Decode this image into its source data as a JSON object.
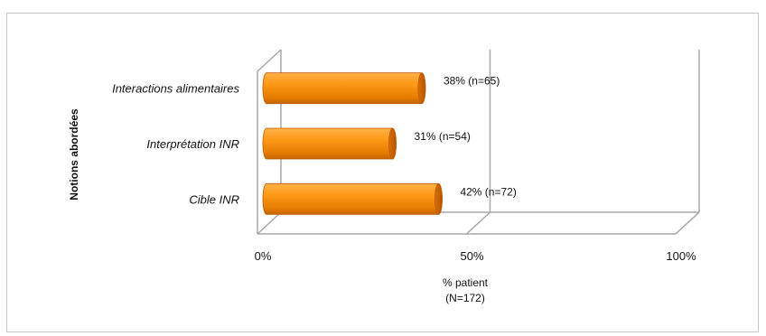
{
  "chart_data": {
    "type": "bar",
    "orientation": "horizontal",
    "style": "3d-cylinder",
    "categories": [
      "Interactions alimentaires",
      "Interprétation INR",
      "Cible INR"
    ],
    "values": [
      38,
      31,
      42
    ],
    "data_labels": [
      "38% (n=65)",
      "31% (n=54)",
      "42% (n=72)"
    ],
    "xlim": [
      0,
      100
    ],
    "x_ticks": [
      "0%",
      "50%",
      "100%"
    ],
    "xlabel_lines": [
      "% patient",
      "(N=172)"
    ],
    "ylabel": "Notions abordées",
    "grid": true,
    "legend": "none",
    "bar_color": "#f7941d",
    "bar_edge_color": "#c05a00"
  }
}
